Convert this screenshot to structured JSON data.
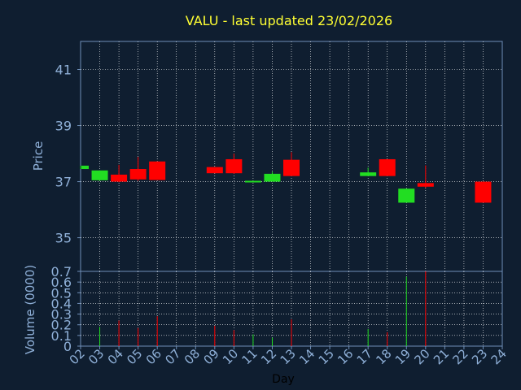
{
  "chart_data": [
    {
      "type": "candlestick",
      "title": "VALU - last updated 23/02/2026",
      "ylabel": "Price",
      "ylim": [
        33.8,
        42.0
      ],
      "y_ticks": [
        35,
        37,
        39,
        41
      ],
      "grid": true,
      "colors": {
        "up": "#22dd22",
        "down": "#ff0000",
        "grid": "#ffffff",
        "axis": "#6f8fb8",
        "tick_text": "#8fb0d8",
        "title": "#ffff33",
        "background": "#0f1e30"
      },
      "candles": [
        {
          "day": 2,
          "open": 37.45,
          "high": 37.57,
          "low": 37.45,
          "close": 37.57
        },
        {
          "day": 3,
          "open": 37.05,
          "high": 37.4,
          "low": 37.03,
          "close": 37.4
        },
        {
          "day": 4,
          "open": 37.25,
          "high": 37.6,
          "low": 36.98,
          "close": 37.0
        },
        {
          "day": 5,
          "open": 37.45,
          "high": 37.88,
          "low": 37.03,
          "close": 37.08
        },
        {
          "day": 6,
          "open": 37.72,
          "high": 37.72,
          "low": 37.06,
          "close": 37.06
        },
        {
          "day": 9,
          "open": 37.52,
          "high": 37.52,
          "low": 37.3,
          "close": 37.3
        },
        {
          "day": 10,
          "open": 37.8,
          "high": 38.0,
          "low": 37.28,
          "close": 37.3
        },
        {
          "day": 11,
          "open": 36.98,
          "high": 37.03,
          "low": 36.98,
          "close": 37.03
        },
        {
          "day": 12,
          "open": 37.0,
          "high": 37.35,
          "low": 37.0,
          "close": 37.28
        },
        {
          "day": 13,
          "open": 37.78,
          "high": 38.05,
          "low": 37.2,
          "close": 37.2
        },
        {
          "day": 17,
          "open": 37.2,
          "high": 37.5,
          "low": 37.2,
          "close": 37.33
        },
        {
          "day": 18,
          "open": 37.8,
          "high": 37.8,
          "low": 37.2,
          "close": 37.2
        },
        {
          "day": 19,
          "open": 36.25,
          "high": 36.75,
          "low": 36.25,
          "close": 36.75
        },
        {
          "day": 20,
          "open": 36.95,
          "high": 37.58,
          "low": 36.78,
          "close": 36.82
        },
        {
          "day": 23,
          "open": 37.0,
          "high": 37.0,
          "low": 36.25,
          "close": 36.25
        }
      ]
    },
    {
      "type": "bar",
      "ylabel": "Volume (0000)",
      "xlabel": "Day",
      "ylim": [
        0,
        0.7
      ],
      "y_ticks": [
        0,
        0.1,
        0.2,
        0.3,
        0.4,
        0.5,
        0.6,
        0.7
      ],
      "y_tick_labels": [
        "0",
        "0.1",
        "0.2",
        "0.3",
        "0.4",
        "0.5",
        "0.6",
        "0.7"
      ],
      "x_ticks": [
        "02",
        "03",
        "04",
        "05",
        "06",
        "07",
        "08",
        "09",
        "10",
        "11",
        "12",
        "13",
        "14",
        "15",
        "16",
        "17",
        "18",
        "19",
        "20",
        "21",
        "22",
        "23",
        "24"
      ],
      "volumes": [
        {
          "day": 3,
          "value": 0.18,
          "color": "#22dd22"
        },
        {
          "day": 4,
          "value": 0.24,
          "color": "#ff0000"
        },
        {
          "day": 5,
          "value": 0.17,
          "color": "#ff0000"
        },
        {
          "day": 6,
          "value": 0.28,
          "color": "#ff0000"
        },
        {
          "day": 9,
          "value": 0.19,
          "color": "#ff0000"
        },
        {
          "day": 10,
          "value": 0.15,
          "color": "#ff0000"
        },
        {
          "day": 11,
          "value": 0.11,
          "color": "#22dd22"
        },
        {
          "day": 12,
          "value": 0.08,
          "color": "#22dd22"
        },
        {
          "day": 13,
          "value": 0.25,
          "color": "#ff0000"
        },
        {
          "day": 17,
          "value": 0.16,
          "color": "#22dd22"
        },
        {
          "day": 18,
          "value": 0.13,
          "color": "#ff0000"
        },
        {
          "day": 19,
          "value": 0.65,
          "color": "#22dd22"
        },
        {
          "day": 20,
          "value": 0.7,
          "color": "#ff0000"
        }
      ]
    }
  ]
}
